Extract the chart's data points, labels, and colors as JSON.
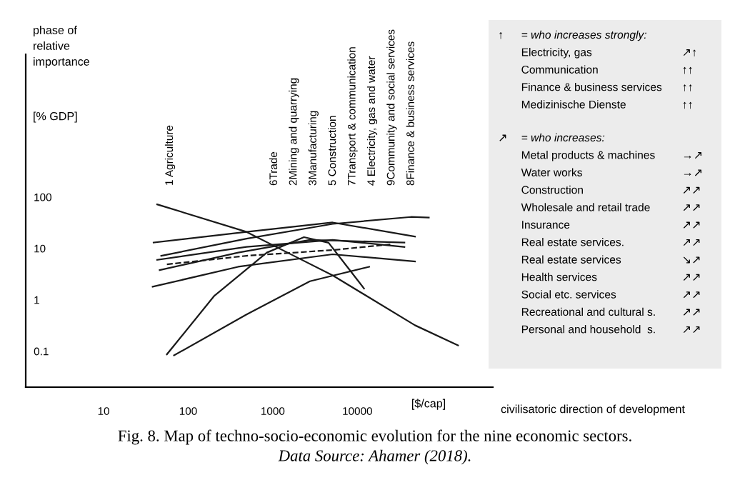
{
  "chart_data": [
    {
      "type": "line",
      "ylabel": "phase of\nrelative\nimportance",
      "xlabel": "[$/cap]",
      "log": "xy",
      "xlim": [
        1.2,
        400000
      ],
      "ylim": [
        0.02,
        60000
      ],
      "xticks": [
        10,
        100,
        1000,
        10000
      ],
      "yticks": [
        0.1,
        1,
        10,
        100
      ],
      "grid": false,
      "legend": false,
      "marker": "none",
      "annotations": [
        "1 Agriculture",
        "6Trade",
        "2Mining and quarrying",
        "3Manufacturing",
        "5 Construction",
        "7Transport & communication",
        "4 Electricity, gas and water",
        "9Community and social services",
        "8Finance & business services",
        "[% GDP]",
        "civilisatoric direction of development",
        "Fig. 8. Map of techno-socio-economic evolution for the nine economic sectors.",
        "Data Source: Ahamer (2018)."
      ],
      "series": [
        {
          "color": "#1a1a1a",
          "x": [
            43,
            490,
            1900,
            5100,
            48000,
            155000
          ],
          "values": [
            72,
            21,
            6.8,
            3,
            0.32,
            0.13
          ]
        },
        {
          "color": "#1a1a1a",
          "x": [
            56,
            204,
            851,
            2340,
            4570,
            7590,
            12000
          ],
          "values": [
            0.087,
            1.2,
            8.3,
            16.6,
            12.9,
            4.4,
            1.66
          ]
        },
        {
          "color": "#1a1a1a",
          "x": [
            68,
            490,
            2750,
            13800
          ],
          "values": [
            0.083,
            0.52,
            2.3,
            4.4
          ]
        },
        {
          "color": "#1a1a1a",
          "x": [
            38,
            390,
            5100,
            48000
          ],
          "values": [
            1.8,
            4.4,
            7.7,
            5.6
          ]
        },
        {
          "color": "#1a1a1a",
          "x": [
            39,
            490,
            5100,
            48000
          ],
          "values": [
            13,
            21,
            32,
            17
          ]
        },
        {
          "color": "#1a1a1a",
          "x": [
            48,
            490,
            5100,
            43000,
            70000
          ],
          "values": [
            7.2,
            15.5,
            30,
            41,
            40
          ]
        },
        {
          "color": "#1a1a1a",
          "line_style": "dashed",
          "x": [
            56,
            490,
            5100,
            24500
          ],
          "values": [
            4.9,
            7.2,
            9.3,
            12
          ]
        },
        {
          "color": "#1a1a1a",
          "x": [
            43,
            490,
            5100,
            36000
          ],
          "values": [
            6,
            10.7,
            14.7,
            10.7
          ]
        },
        {
          "color": "#1a1a1a",
          "x": [
            46,
            390,
            2750,
            36000
          ],
          "values": [
            3.8,
            8.3,
            14.7,
            13
          ]
        }
      ]
    },
    {
      "type": "other",
      "annotations": [
        "↑",
        "= who increases strongly:",
        "Electricity, gas",
        "↗↑",
        "Communication",
        "↑↑",
        "Finance & business services",
        "↑↑",
        "Medizinische Dienste",
        "↑↑",
        "↗",
        "= who increases:",
        "Metal products & machines",
        "→↗",
        "Water works",
        "→↗",
        "Construction",
        "↗↗",
        "Wholesale and retail trade",
        "↗↗",
        "Insurance",
        "↗↗",
        "Real estate services.",
        "↗↗",
        "Real estate services",
        "↘↗",
        "Health services",
        "↗↗",
        "Social etc. services",
        "↗↗",
        "Recreational and cultural s.",
        "↗↗",
        "Personal and household  s.",
        "↗↗"
      ]
    }
  ]
}
